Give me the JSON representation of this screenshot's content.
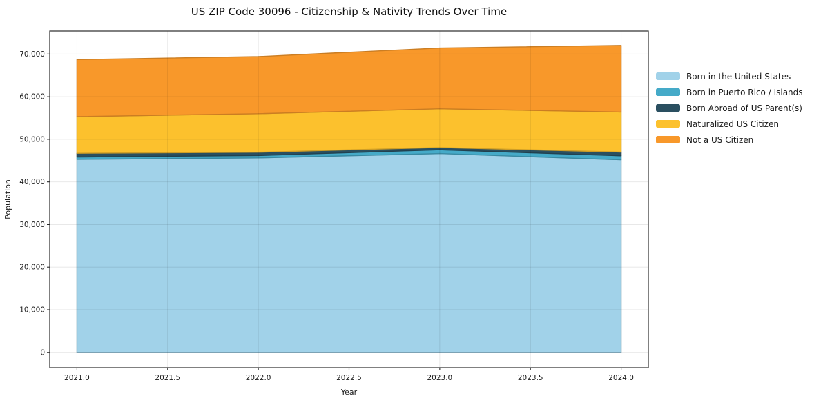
{
  "chart_data": {
    "type": "area",
    "stacked": true,
    "title": "US ZIP Code 30096 - Citizenship & Nativity Trends Over Time",
    "xlabel": "Year",
    "ylabel": "Population",
    "x": [
      2021,
      2022,
      2023,
      2024
    ],
    "series": [
      {
        "name": "Born in the United States",
        "color": "#A1D2E9",
        "values": [
          45300,
          45650,
          46650,
          45200
        ]
      },
      {
        "name": "Born in Puerto Rico / Islands",
        "color": "#45AAC8",
        "values": [
          550,
          550,
          880,
          930
        ]
      },
      {
        "name": "Born Abroad of US Parent(s)",
        "color": "#2A4F60",
        "values": [
          870,
          760,
          530,
          860
        ]
      },
      {
        "name": "Naturalized US Citizen",
        "color": "#FCC12D",
        "values": [
          8600,
          9050,
          9100,
          9400
        ]
      },
      {
        "name": "Not a US Citizen",
        "color": "#F8982A",
        "values": [
          13400,
          13400,
          14250,
          15650
        ]
      }
    ],
    "xticks": [
      2021.0,
      2021.5,
      2022.0,
      2022.5,
      2023.0,
      2023.5,
      2024.0
    ],
    "xtick_labels": [
      "2021.0",
      "2021.5",
      "2022.0",
      "2022.5",
      "2023.0",
      "2023.5",
      "2024.0"
    ],
    "yticks": [
      0,
      10000,
      20000,
      30000,
      40000,
      50000,
      60000,
      70000
    ],
    "ytick_labels": [
      "0",
      "10,000",
      "20,000",
      "30,000",
      "40,000",
      "50,000",
      "60,000",
      "70,000"
    ],
    "xlim": [
      2020.85,
      2024.15
    ],
    "ylim": [
      -3600,
      75400
    ],
    "grid": true,
    "grid_color": "#000000",
    "grid_alpha": 0.1,
    "spine_color": "#2b2b2b",
    "tick_label_color": "#1a1a1a",
    "legend_position": "right-outside"
  }
}
